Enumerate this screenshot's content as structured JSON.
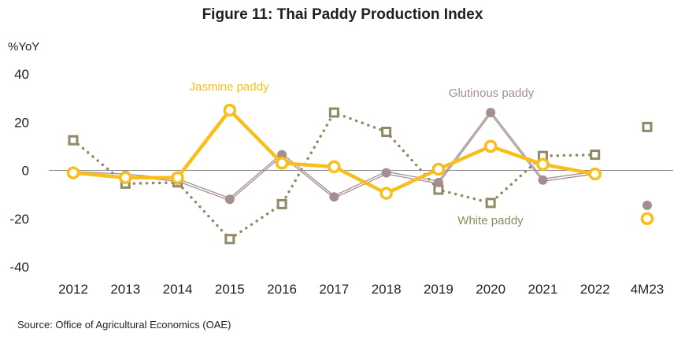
{
  "chart_data": {
    "type": "line",
    "title": "Figure 11: Thai Paddy Production Index",
    "ylabel": "%YoY",
    "xlabel": "",
    "ylim": [
      -40,
      40
    ],
    "yticks": [
      40,
      20,
      0,
      -20,
      -40
    ],
    "grid": false,
    "categories": [
      "2012",
      "2013",
      "2014",
      "2015",
      "2016",
      "2017",
      "2018",
      "2019",
      "2020",
      "2021",
      "2022",
      "4M23"
    ],
    "series": [
      {
        "name": "Jasmine paddy",
        "color": "#F9BE1C",
        "style": "solid-thick-hollow-circle",
        "values": [
          -1,
          -3,
          -3,
          25,
          3,
          1.5,
          -9.5,
          0.5,
          10,
          2.5,
          -1.5,
          -20
        ]
      },
      {
        "name": "Glutinous paddy",
        "color": "#A38F8F",
        "style": "double-thin-filled-circle",
        "values": [
          -1,
          -2,
          -4,
          -12,
          6.5,
          -11,
          -1,
          -5,
          24,
          -4,
          -1,
          -14.5
        ]
      },
      {
        "name": "White paddy",
        "color": "#8F8A64",
        "style": "dotted-square",
        "values": [
          12.5,
          -5.5,
          -5,
          -28.5,
          -14,
          24,
          16,
          -8,
          -13.5,
          6,
          6.5,
          18
        ]
      }
    ]
  },
  "source": "Source: Office of Agricultural Economics (OAE)"
}
